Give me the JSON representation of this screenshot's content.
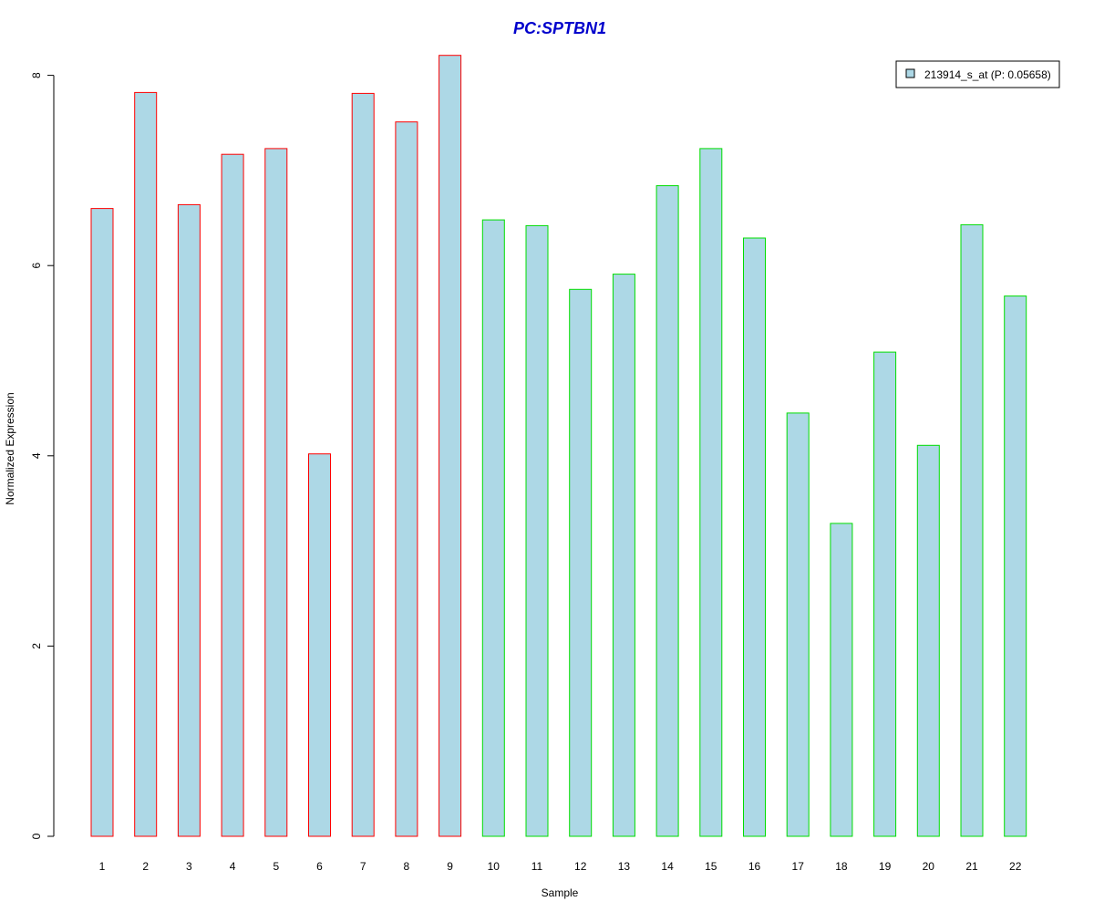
{
  "chart_data": {
    "type": "bar",
    "title": "PC:SPTBN1",
    "xlabel": "Sample",
    "ylabel": "Normalized Expression",
    "ylim": [
      0,
      8.2
    ],
    "yticks": [
      "0",
      "2",
      "4",
      "6",
      "8"
    ],
    "grid": false,
    "legend_position": "top-right",
    "categories": [
      "1",
      "2",
      "3",
      "4",
      "5",
      "6",
      "7",
      "8",
      "9",
      "10",
      "11",
      "12",
      "13",
      "14",
      "15",
      "16",
      "17",
      "18",
      "19",
      "20",
      "21",
      "22"
    ],
    "series": [
      {
        "name": "213914_s_at (P: 0.05658)",
        "values": [
          6.6,
          7.82,
          6.64,
          7.17,
          7.23,
          4.02,
          7.81,
          7.51,
          8.21,
          6.48,
          6.42,
          5.75,
          5.91,
          6.84,
          7.23,
          6.29,
          4.45,
          3.29,
          5.09,
          4.11,
          6.43,
          5.68
        ]
      }
    ],
    "bar_group": [
      "red",
      "red",
      "red",
      "red",
      "red",
      "red",
      "red",
      "red",
      "red",
      "green",
      "green",
      "green",
      "green",
      "green",
      "green",
      "green",
      "green",
      "green",
      "green",
      "green",
      "green",
      "green"
    ],
    "colors": {
      "title": "#0000CC",
      "bar_fill": "#ADD8E6",
      "border_red": "#FF0000",
      "border_green": "#00DD00",
      "axis": "#000000"
    }
  }
}
